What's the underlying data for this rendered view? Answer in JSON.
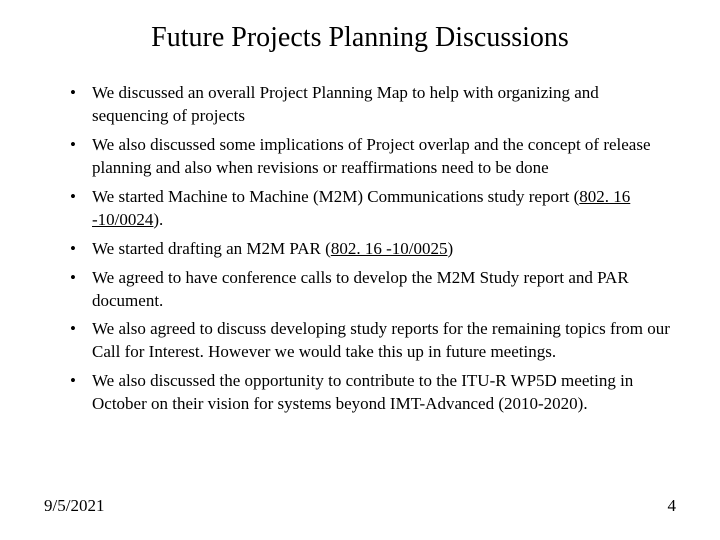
{
  "title": "Future Projects Planning Discussions",
  "bullets": [
    {
      "pre": "We discussed an overall Project Planning Map to help with organizing and sequencing of projects",
      "link": "",
      "post": ""
    },
    {
      "pre": "We also discussed some implications of Project overlap and the concept of release planning and also when revisions or reaffirmations need to be done",
      "link": "",
      "post": ""
    },
    {
      "pre": "We started Machine to Machine (M2M) Communications study report (",
      "link": "802. 16 -10/0024",
      "post": ")."
    },
    {
      "pre": "We started drafting an M2M PAR (",
      "link": "802. 16 -10/0025",
      "post": ")"
    },
    {
      "pre": "We agreed to have conference calls to develop the M2M Study report and PAR document.",
      "link": "",
      "post": ""
    },
    {
      "pre": "We also agreed to discuss developing study reports for the remaining topics from our Call for Interest. However we would take this up in future meetings.",
      "link": "",
      "post": ""
    },
    {
      "pre": "We also discussed the opportunity to contribute to the ITU-R WP5D meeting in October on their vision for systems beyond IMT-Advanced (2010-2020).",
      "link": "",
      "post": ""
    }
  ],
  "footer": {
    "date": "9/5/2021",
    "page": "4"
  },
  "style": {
    "background_color": "#ffffff",
    "text_color": "#000000",
    "link_color": "#000000",
    "title_fontsize": 28,
    "body_fontsize": 17,
    "font_family": "Times New Roman"
  }
}
